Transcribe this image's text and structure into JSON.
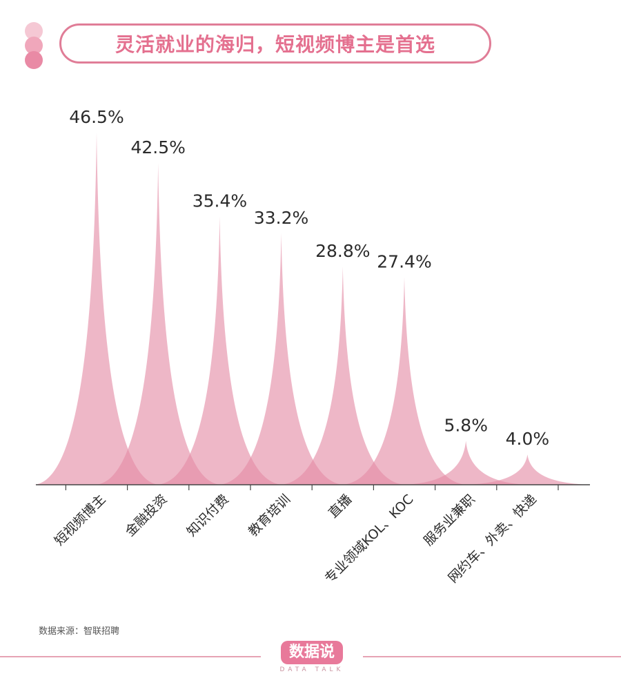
{
  "title": "灵活就业的海归，短视频博主是首选",
  "colors": {
    "accent": "#e07d97",
    "peak": "#e48aa5",
    "dot_light": "#f5c8d4",
    "dot_mid": "#f0a7bb",
    "dot_dark": "#e98aa5"
  },
  "source": "数据来源：智联招聘",
  "brand": {
    "main": "数据说",
    "sub": "DATA TALK"
  },
  "chart_data": {
    "type": "area",
    "categories": [
      "短视频博主",
      "金融投资",
      "知识付费",
      "教育培训",
      "直播",
      "专业领域KOL、KOC",
      "服务业兼职",
      "网约车、外卖、快递"
    ],
    "values": [
      46.5,
      42.5,
      35.4,
      33.2,
      28.8,
      27.4,
      5.8,
      4.0
    ],
    "value_labels": [
      "46.5%",
      "42.5%",
      "35.4%",
      "33.2%",
      "28.8%",
      "27.4%",
      "5.8%",
      "4.0%"
    ],
    "title": "灵活就业的海归，短视频博主是首选",
    "xlabel": "",
    "ylabel": "",
    "ylim": [
      0,
      50
    ],
    "grid": false,
    "legend": "none"
  }
}
